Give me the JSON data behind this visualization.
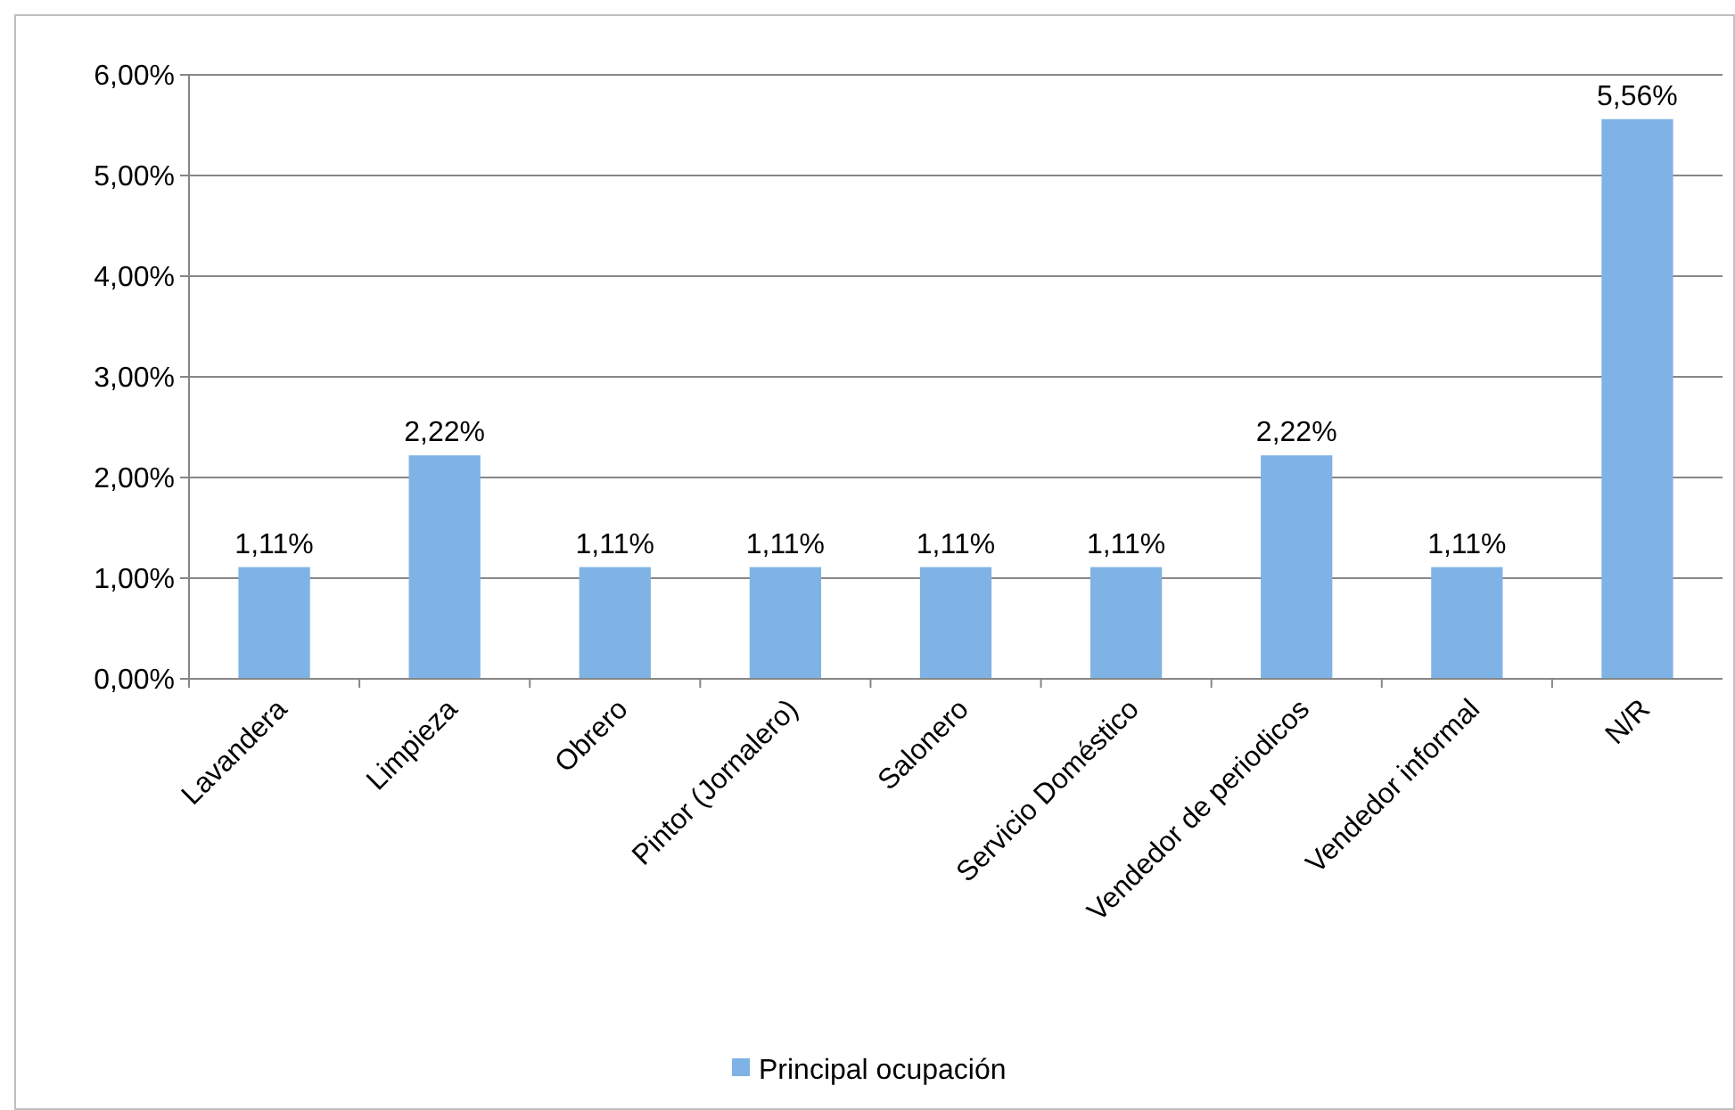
{
  "chart_data": {
    "type": "bar",
    "categories": [
      "Lavandera",
      "Limpieza",
      "Obrero",
      "Pintor (Jornalero)",
      "Salonero",
      "Servicio Doméstico",
      "Vendedor de periodicos",
      "Vendedor informal",
      "N/R"
    ],
    "series": [
      {
        "name": "Principal ocupación",
        "color": "#7fb3e6",
        "values": [
          1.11,
          2.22,
          1.11,
          1.11,
          1.11,
          1.11,
          2.22,
          1.11,
          5.56
        ],
        "value_labels": [
          "1,11%",
          "2,22%",
          "1,11%",
          "1,11%",
          "1,11%",
          "1,11%",
          "2,22%",
          "1,11%",
          "5,56%"
        ]
      }
    ],
    "ylim": [
      0,
      6
    ],
    "yticks": [
      {
        "value": 0,
        "label": "0,00%"
      },
      {
        "value": 1,
        "label": "1,00%"
      },
      {
        "value": 2,
        "label": "2,00%"
      },
      {
        "value": 3,
        "label": "3,00%"
      },
      {
        "value": 4,
        "label": "4,00%"
      },
      {
        "value": 5,
        "label": "5,00%"
      },
      {
        "value": 6,
        "label": "6,00%"
      }
    ],
    "grid": "y",
    "legend": "bottom"
  }
}
